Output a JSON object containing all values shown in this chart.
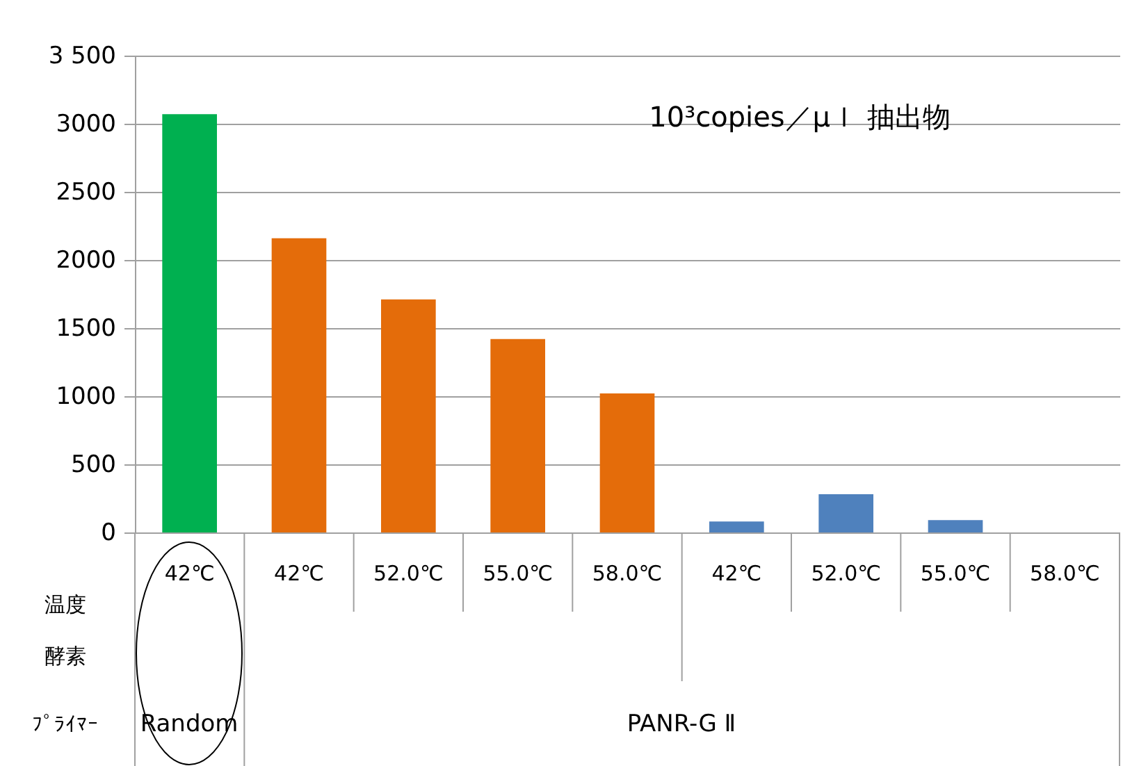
{
  "chart_data": {
    "type": "bar",
    "title": "10³copies／μｌ 抽出物",
    "categories": [
      "42℃",
      "42℃",
      "52.0℃",
      "55.0℃",
      "58.0℃",
      "42℃",
      "52.0℃",
      "55.0℃",
      "58.0℃"
    ],
    "values": [
      3070,
      2160,
      1710,
      1420,
      1020,
      80,
      280,
      90,
      0
    ],
    "colors": [
      "#00b050",
      "#e46c0a",
      "#e46c0a",
      "#e46c0a",
      "#e46c0a",
      "#4f81bd",
      "#4f81bd",
      "#4f81bd",
      "#4f81bd"
    ],
    "ylim": [
      0,
      3500
    ],
    "yticks": [
      0,
      500,
      1000,
      1500,
      2000,
      2500,
      3000,
      {
        "value": 3500,
        "label": "3 500"
      }
    ],
    "grid": "y",
    "legend": false,
    "annotations": [
      "温度",
      "酵素",
      "ﾌﾟﾗｲﾏｰ",
      "Random",
      "PANR-G Ⅱ"
    ]
  }
}
